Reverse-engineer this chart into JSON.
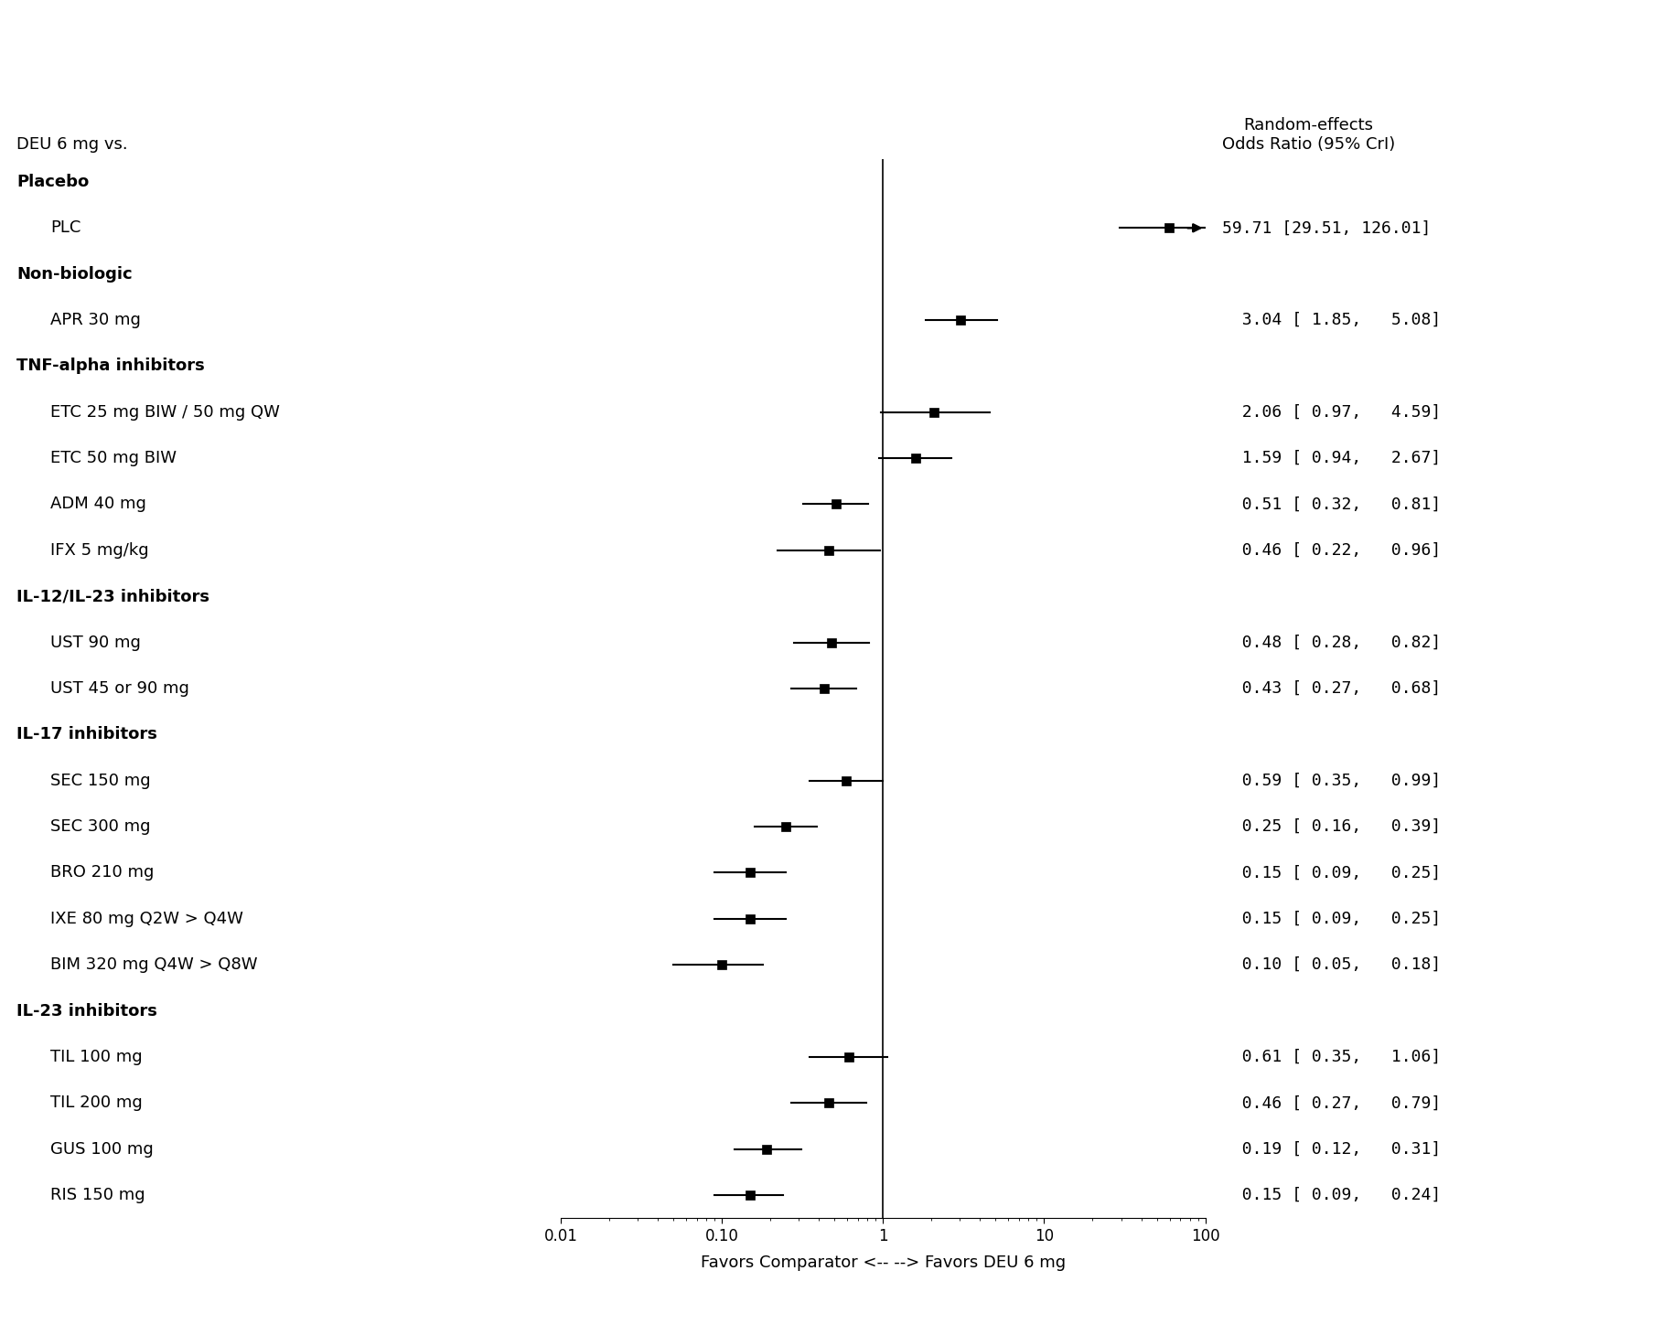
{
  "title_left": "DEU 6 mg vs.",
  "title_right": "Random-effects\nOdds Ratio (95% CrI)",
  "xlabel": "Favors Comparator <-- --> Favors DEU 6 mg",
  "xlim": [
    0.01,
    100
  ],
  "xticks": [
    0.01,
    0.1,
    1,
    10,
    100
  ],
  "xticklabels": [
    "0.01",
    "0.10",
    "1",
    "10",
    "100"
  ],
  "vline": 1.0,
  "rows": [
    {
      "label": "Placebo",
      "bold": true,
      "indent": false
    },
    {
      "label": "PLC",
      "bold": false,
      "indent": true,
      "or": 59.71,
      "ci_lo": 29.51,
      "ci_hi": 126.01,
      "arrow_right": true,
      "text": "59.71 [29.51, 126.01]"
    },
    {
      "label": "Non-biologic",
      "bold": true,
      "indent": false
    },
    {
      "label": "APR 30 mg",
      "bold": false,
      "indent": true,
      "or": 3.04,
      "ci_lo": 1.85,
      "ci_hi": 5.08,
      "arrow_right": false,
      "text": "  3.04 [ 1.85,   5.08]"
    },
    {
      "label": "TNF-alpha inhibitors",
      "bold": true,
      "indent": false
    },
    {
      "label": "ETC 25 mg BIW / 50 mg QW",
      "bold": false,
      "indent": true,
      "or": 2.06,
      "ci_lo": 0.97,
      "ci_hi": 4.59,
      "arrow_right": false,
      "text": "  2.06 [ 0.97,   4.59]"
    },
    {
      "label": "ETC 50 mg BIW",
      "bold": false,
      "indent": true,
      "or": 1.59,
      "ci_lo": 0.94,
      "ci_hi": 2.67,
      "arrow_right": false,
      "text": "  1.59 [ 0.94,   2.67]"
    },
    {
      "label": "ADM 40 mg",
      "bold": false,
      "indent": true,
      "or": 0.51,
      "ci_lo": 0.32,
      "ci_hi": 0.81,
      "arrow_right": false,
      "text": "  0.51 [ 0.32,   0.81]"
    },
    {
      "label": "IFX 5 mg/kg",
      "bold": false,
      "indent": true,
      "or": 0.46,
      "ci_lo": 0.22,
      "ci_hi": 0.96,
      "arrow_right": false,
      "text": "  0.46 [ 0.22,   0.96]"
    },
    {
      "label": "IL-12/IL-23 inhibitors",
      "bold": true,
      "indent": false
    },
    {
      "label": "UST 90 mg",
      "bold": false,
      "indent": true,
      "or": 0.48,
      "ci_lo": 0.28,
      "ci_hi": 0.82,
      "arrow_right": false,
      "text": "  0.48 [ 0.28,   0.82]"
    },
    {
      "label": "UST 45 or 90 mg",
      "bold": false,
      "indent": true,
      "or": 0.43,
      "ci_lo": 0.27,
      "ci_hi": 0.68,
      "arrow_right": false,
      "text": "  0.43 [ 0.27,   0.68]"
    },
    {
      "label": "IL-17 inhibitors",
      "bold": true,
      "indent": false
    },
    {
      "label": "SEC 150 mg",
      "bold": false,
      "indent": true,
      "or": 0.59,
      "ci_lo": 0.35,
      "ci_hi": 0.99,
      "arrow_right": false,
      "text": "  0.59 [ 0.35,   0.99]"
    },
    {
      "label": "SEC 300 mg",
      "bold": false,
      "indent": true,
      "or": 0.25,
      "ci_lo": 0.16,
      "ci_hi": 0.39,
      "arrow_right": false,
      "text": "  0.25 [ 0.16,   0.39]"
    },
    {
      "label": "BRO 210 mg",
      "bold": false,
      "indent": true,
      "or": 0.15,
      "ci_lo": 0.09,
      "ci_hi": 0.25,
      "arrow_right": false,
      "text": "  0.15 [ 0.09,   0.25]"
    },
    {
      "label": "IXE 80 mg Q2W > Q4W",
      "bold": false,
      "indent": true,
      "or": 0.15,
      "ci_lo": 0.09,
      "ci_hi": 0.25,
      "arrow_right": false,
      "text": "  0.15 [ 0.09,   0.25]"
    },
    {
      "label": "BIM 320 mg Q4W > Q8W",
      "bold": false,
      "indent": true,
      "or": 0.1,
      "ci_lo": 0.05,
      "ci_hi": 0.18,
      "arrow_right": false,
      "text": "  0.10 [ 0.05,   0.18]"
    },
    {
      "label": "IL-23 inhibitors",
      "bold": true,
      "indent": false
    },
    {
      "label": "TIL 100 mg",
      "bold": false,
      "indent": true,
      "or": 0.61,
      "ci_lo": 0.35,
      "ci_hi": 1.06,
      "arrow_right": false,
      "text": "  0.61 [ 0.35,   1.06]"
    },
    {
      "label": "TIL 200 mg",
      "bold": false,
      "indent": true,
      "or": 0.46,
      "ci_lo": 0.27,
      "ci_hi": 0.79,
      "arrow_right": false,
      "text": "  0.46 [ 0.27,   0.79]"
    },
    {
      "label": "GUS 100 mg",
      "bold": false,
      "indent": true,
      "or": 0.19,
      "ci_lo": 0.12,
      "ci_hi": 0.31,
      "arrow_right": false,
      "text": "  0.19 [ 0.12,   0.31]"
    },
    {
      "label": "RIS 150 mg",
      "bold": false,
      "indent": true,
      "or": 0.15,
      "ci_lo": 0.09,
      "ci_hi": 0.24,
      "arrow_right": false,
      "text": "  0.15 [ 0.09,   0.24]"
    }
  ],
  "marker_color": "black",
  "marker_size": 7,
  "line_color": "black",
  "line_width": 1.5,
  "text_color": "black",
  "background_color": "white",
  "label_fontsize": 13,
  "header_fontsize": 13,
  "ci_text_fontsize": 13,
  "tick_fontsize": 12
}
